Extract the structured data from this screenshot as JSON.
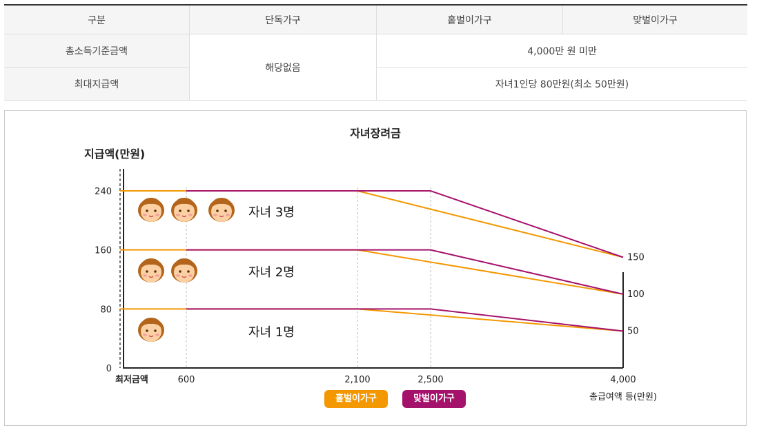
{
  "table": {
    "headers": [
      "구분",
      "단독가구",
      "홑벌이가구",
      "맞벌이가구"
    ],
    "rows": [
      {
        "label": "총소득기준금액",
        "single": "해당없음",
        "value": "4,000만 원 미만"
      },
      {
        "label": "최대지급액",
        "value": "자녀1인당 80만원(최소 50만원)"
      }
    ]
  },
  "chart_data": {
    "type": "line",
    "title": "자녀장려금",
    "ylabel": "지급액(만원)",
    "xlabel": "총급여액 등(만원)",
    "x_min_label": "최저금액",
    "xticks": [
      600,
      2100,
      2500,
      4000
    ],
    "xtick_labels": [
      "600",
      "2,100",
      "2,500",
      "4,000"
    ],
    "yticks": [
      0,
      80,
      160,
      240
    ],
    "right_labels": [
      {
        "value": 150,
        "label": "150"
      },
      {
        "value": 100,
        "label": "100"
      },
      {
        "value": 50,
        "label": "50"
      }
    ],
    "xlim": [
      0,
      4000
    ],
    "ylim": [
      0,
      240
    ],
    "series": [
      {
        "name": "홑벌이가구",
        "color": "#f39800",
        "groups": [
          {
            "children_label": "자녀 3명",
            "points": [
              [
                0,
                240
              ],
              [
                2100,
                240
              ],
              [
                4000,
                150
              ]
            ]
          },
          {
            "children_label": "자녀 2명",
            "points": [
              [
                0,
                160
              ],
              [
                2100,
                160
              ],
              [
                4000,
                100
              ]
            ]
          },
          {
            "children_label": "자녀 1명",
            "points": [
              [
                0,
                80
              ],
              [
                2100,
                80
              ],
              [
                4000,
                50
              ]
            ]
          }
        ]
      },
      {
        "name": "맞벌이가구",
        "color": "#a5126b",
        "groups": [
          {
            "children_label": "자녀 3명",
            "points": [
              [
                600,
                240
              ],
              [
                2500,
                240
              ],
              [
                4000,
                150
              ]
            ]
          },
          {
            "children_label": "자녀 2명",
            "points": [
              [
                600,
                160
              ],
              [
                2500,
                160
              ],
              [
                4000,
                100
              ]
            ]
          },
          {
            "children_label": "자녀 1명",
            "points": [
              [
                600,
                80
              ],
              [
                2500,
                80
              ],
              [
                4000,
                50
              ]
            ]
          }
        ]
      }
    ],
    "annotations": [
      {
        "text": "자녀 3명",
        "children": 3
      },
      {
        "text": "자녀 2명",
        "children": 2
      },
      {
        "text": "자녀 1명",
        "children": 1
      }
    ],
    "legend": [
      "홑벌이가구",
      "맞벌이가구"
    ]
  }
}
